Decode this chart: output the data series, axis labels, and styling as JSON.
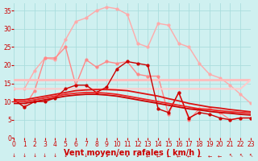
{
  "x": [
    0,
    1,
    2,
    3,
    4,
    5,
    6,
    7,
    8,
    9,
    10,
    11,
    12,
    13,
    14,
    15,
    16,
    17,
    18,
    19,
    20,
    21,
    22,
    23
  ],
  "series": [
    {
      "label": "rafales_light_pink",
      "color": "#ffaaaa",
      "lw": 1.0,
      "marker": "o",
      "markersize": 2.0,
      "values": [
        13.5,
        13.5,
        18.5,
        22.0,
        21.5,
        27.0,
        32.0,
        33.0,
        35.0,
        36.0,
        35.5,
        34.0,
        26.0,
        25.0,
        31.5,
        31.0,
        26.0,
        25.0,
        20.5,
        17.5,
        16.5,
        14.5,
        12.0,
        9.5
      ]
    },
    {
      "label": "vent_medium_pink",
      "color": "#ff8888",
      "lw": 1.0,
      "marker": "o",
      "markersize": 2.0,
      "values": [
        10.5,
        8.5,
        13.0,
        22.0,
        22.0,
        25.0,
        14.5,
        21.5,
        19.5,
        21.0,
        20.5,
        21.0,
        17.5,
        17.0,
        17.0,
        6.5,
        12.5,
        5.0,
        8.0,
        8.0,
        7.0,
        5.0,
        5.5,
        5.5
      ]
    },
    {
      "label": "trend_light_upper",
      "color": "#ffbbbb",
      "lw": 2.0,
      "marker": null,
      "markersize": 0,
      "values": [
        16.0,
        16.0,
        16.0,
        16.0,
        16.0,
        16.0,
        16.0,
        16.0,
        16.0,
        16.0,
        16.0,
        16.0,
        16.0,
        16.0,
        16.0,
        16.0,
        16.0,
        16.0,
        16.0,
        16.0,
        16.0,
        16.0,
        16.0,
        16.0
      ]
    },
    {
      "label": "trend_light_lower",
      "color": "#ffcccc",
      "lw": 1.5,
      "marker": null,
      "markersize": 0,
      "values": [
        13.5,
        13.5,
        13.5,
        13.5,
        13.5,
        13.5,
        13.5,
        13.5,
        13.5,
        13.5,
        13.5,
        13.5,
        13.5,
        13.5,
        13.5,
        13.5,
        13.5,
        13.5,
        13.5,
        13.5,
        13.5,
        13.5,
        13.5,
        16.0
      ]
    },
    {
      "label": "vent_dark_zigzag",
      "color": "#cc0000",
      "lw": 1.0,
      "marker": "o",
      "markersize": 2.0,
      "values": [
        10.5,
        8.5,
        10.0,
        10.0,
        11.0,
        13.5,
        14.5,
        14.5,
        12.5,
        14.0,
        19.0,
        21.0,
        20.5,
        20.0,
        8.0,
        7.0,
        12.5,
        5.5,
        7.0,
        6.5,
        5.5,
        5.0,
        5.5,
        5.5
      ]
    },
    {
      "label": "avg_dark1",
      "color": "#dd1111",
      "lw": 1.3,
      "marker": null,
      "markersize": 0,
      "values": [
        10.5,
        10.5,
        11.0,
        11.5,
        12.0,
        12.5,
        13.0,
        13.2,
        13.3,
        13.3,
        13.2,
        13.0,
        12.5,
        12.0,
        11.5,
        10.8,
        10.2,
        9.5,
        9.0,
        8.5,
        8.2,
        7.8,
        7.5,
        7.2
      ]
    },
    {
      "label": "avg_dark2",
      "color": "#ee2222",
      "lw": 1.3,
      "marker": null,
      "markersize": 0,
      "values": [
        10.0,
        10.0,
        10.5,
        11.0,
        11.5,
        12.0,
        12.3,
        12.5,
        12.5,
        12.3,
        12.0,
        11.5,
        11.0,
        10.5,
        10.0,
        9.5,
        9.0,
        8.5,
        8.0,
        7.8,
        7.5,
        7.2,
        7.0,
        6.8
      ]
    },
    {
      "label": "avg_dark3",
      "color": "#cc0000",
      "lw": 1.3,
      "marker": null,
      "markersize": 0,
      "values": [
        9.5,
        9.5,
        10.0,
        10.5,
        11.0,
        11.5,
        11.8,
        12.0,
        12.0,
        11.8,
        11.5,
        11.0,
        10.5,
        10.0,
        9.5,
        9.0,
        8.5,
        8.0,
        7.7,
        7.3,
        7.0,
        6.8,
        6.5,
        6.3
      ]
    }
  ],
  "xlabel": "Vent moyen/en rafales ( km/h )",
  "xlim": [
    0,
    23
  ],
  "ylim": [
    0,
    37
  ],
  "yticks": [
    0,
    5,
    10,
    15,
    20,
    25,
    30,
    35
  ],
  "xticks": [
    0,
    1,
    2,
    3,
    4,
    5,
    6,
    7,
    8,
    9,
    10,
    11,
    12,
    13,
    14,
    15,
    16,
    17,
    18,
    19,
    20,
    21,
    22,
    23
  ],
  "bg_color": "#cff0f0",
  "grid_color": "#aadddd",
  "tick_color": "#cc0000",
  "label_color": "#cc0000",
  "xlabel_fontsize": 7,
  "tick_fontsize": 5.5
}
